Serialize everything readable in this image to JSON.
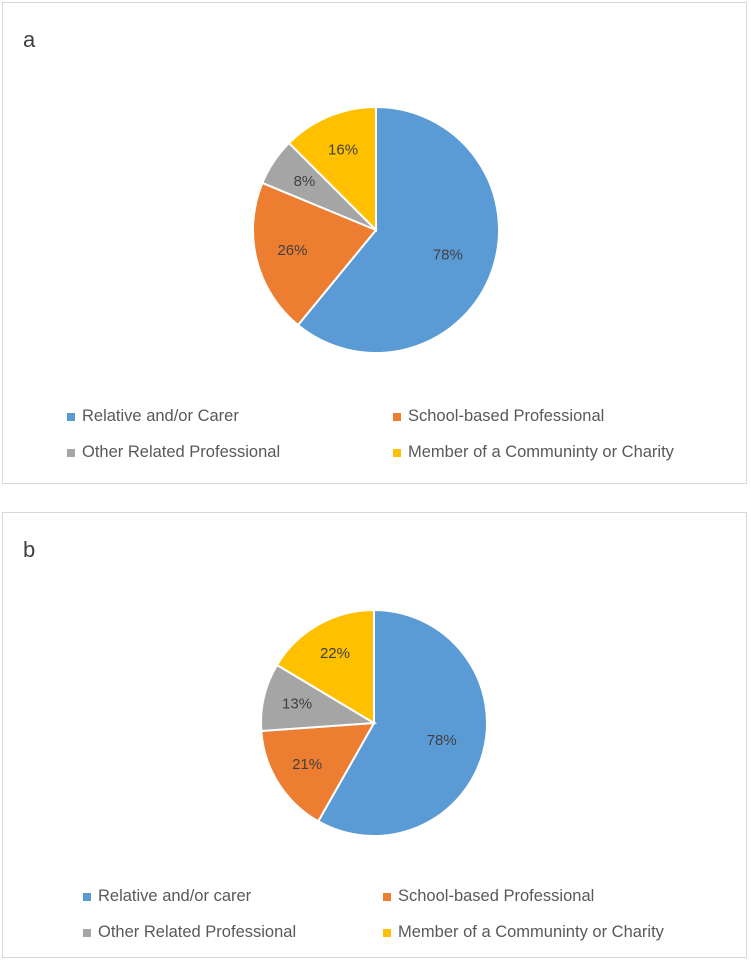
{
  "chart_data": [
    {
      "type": "pie",
      "panel_label": "a",
      "categories": [
        "Relative and/or Carer",
        "School-based Professional",
        "Other Related Professional",
        "Member of a Communinty or Charity"
      ],
      "values": [
        78,
        26,
        8,
        16
      ],
      "value_labels": [
        "78%",
        "26%",
        "8%",
        "16%"
      ],
      "colors": [
        "#5B9BD5",
        "#ED7D31",
        "#A5A5A5",
        "#FFC000"
      ],
      "legend_position": "bottom"
    },
    {
      "type": "pie",
      "panel_label": "b",
      "categories": [
        "Relative and/or carer",
        "School-based Professional",
        "Other Related Professional",
        "Member of a Communinty or Charity"
      ],
      "values": [
        78,
        21,
        13,
        22
      ],
      "value_labels": [
        "78%",
        "21%",
        "13%",
        "22%"
      ],
      "colors": [
        "#5B9BD5",
        "#ED7D31",
        "#A5A5A5",
        "#FFC000"
      ],
      "legend_position": "bottom"
    }
  ]
}
